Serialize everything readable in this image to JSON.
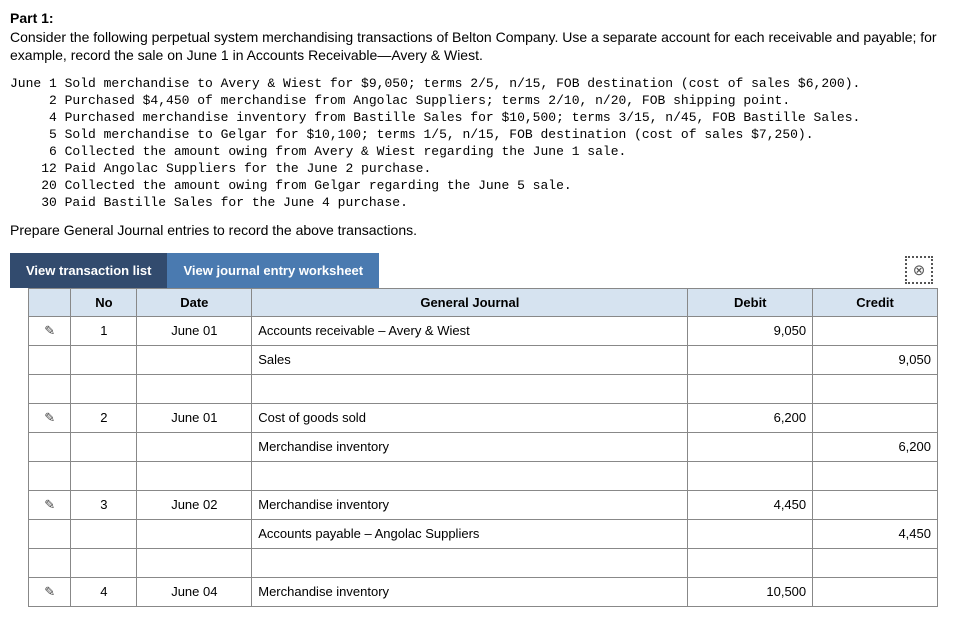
{
  "part_title": "Part 1:",
  "intro": "Consider the following perpetual system merchandising transactions of Belton Company. Use a separate account for each receivable and payable; for example, record the sale on June 1 in Accounts Receivable—Avery & Wiest.",
  "transactions": "June 1 Sold merchandise to Avery & Wiest for $9,050; terms 2/5, n/15, FOB destination (cost of sales $6,200).\n     2 Purchased $4,450 of merchandise from Angolac Suppliers; terms 2/10, n/20, FOB shipping point.\n     4 Purchased merchandise inventory from Bastille Sales for $10,500; terms 3/15, n/45, FOB Bastille Sales.\n     5 Sold merchandise to Gelgar for $10,100; terms 1/5, n/15, FOB destination (cost of sales $7,250).\n     6 Collected the amount owing from Avery & Wiest regarding the June 1 sale.\n    12 Paid Angolac Suppliers for the June 2 purchase.\n    20 Collected the amount owing from Gelgar regarding the June 5 sale.\n    30 Paid Bastille Sales for the June 4 purchase.",
  "instruction": "Prepare General Journal entries to record the above transactions.",
  "tabs": {
    "list": "View transaction list",
    "worksheet": "View journal entry worksheet"
  },
  "headers": {
    "no": "No",
    "date": "Date",
    "gj": "General Journal",
    "debit": "Debit",
    "credit": "Credit"
  },
  "rows": [
    {
      "edit": "✎",
      "no": "1",
      "date": "June 01",
      "acct": "Accounts receivable – Avery & Wiest",
      "indent": false,
      "debit": "9,050",
      "credit": ""
    },
    {
      "edit": "",
      "no": "",
      "date": "",
      "acct": "Sales",
      "indent": true,
      "debit": "",
      "credit": "9,050"
    },
    {
      "edit": "",
      "no": "",
      "date": "",
      "acct": "",
      "indent": false,
      "debit": "",
      "credit": ""
    },
    {
      "edit": "✎",
      "no": "2",
      "date": "June 01",
      "acct": "Cost of goods sold",
      "indent": false,
      "debit": "6,200",
      "credit": ""
    },
    {
      "edit": "",
      "no": "",
      "date": "",
      "acct": "Merchandise inventory",
      "indent": true,
      "debit": "",
      "credit": "6,200"
    },
    {
      "edit": "",
      "no": "",
      "date": "",
      "acct": "",
      "indent": false,
      "debit": "",
      "credit": ""
    },
    {
      "edit": "✎",
      "no": "3",
      "date": "June 02",
      "acct": "Merchandise inventory",
      "indent": false,
      "debit": "4,450",
      "credit": ""
    },
    {
      "edit": "",
      "no": "",
      "date": "",
      "acct": "Accounts payable – Angolac Suppliers",
      "indent": true,
      "debit": "",
      "credit": "4,450"
    },
    {
      "edit": "",
      "no": "",
      "date": "",
      "acct": "",
      "indent": false,
      "debit": "",
      "credit": ""
    },
    {
      "edit": "✎",
      "no": "4",
      "date": "June 04",
      "acct": "Merchandise inventory",
      "indent": false,
      "debit": "10,500",
      "credit": ""
    }
  ]
}
